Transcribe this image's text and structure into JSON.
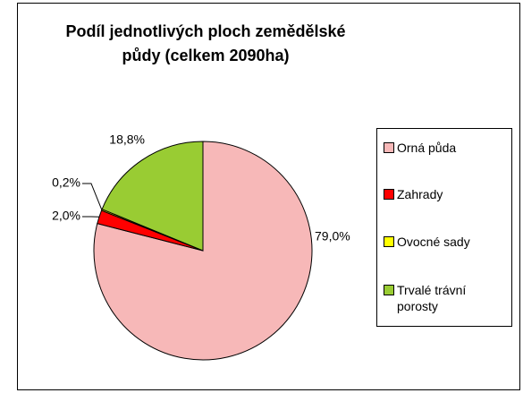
{
  "chart_data": {
    "type": "pie",
    "title": "Podíl jednotlivých ploch zemědělské půdy (celkem 2090ha)",
    "categories": [
      "Orná půda",
      "Zahrady",
      "Ovocné sady",
      "Trvalé trávní porosty"
    ],
    "values": [
      79.0,
      2.0,
      0.2,
      18.8
    ],
    "value_labels": [
      "79,0%",
      "2,0%",
      "0,2%",
      "18,8%"
    ],
    "colors": [
      "#f7b8b8",
      "#ff0000",
      "#ffff00",
      "#99cc33"
    ],
    "legend": "right"
  }
}
